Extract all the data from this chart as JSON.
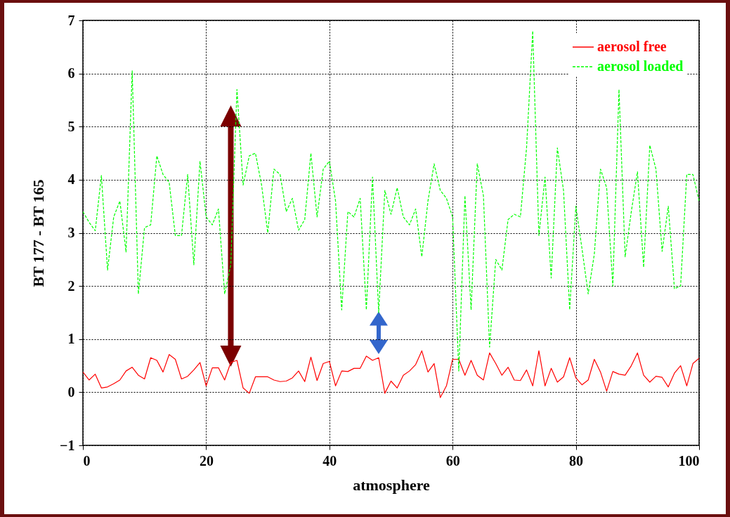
{
  "chart_data": {
    "type": "line",
    "xlabel": "atmosphere",
    "ylabel": "BT 177 - BT 165",
    "x": [
      0,
      1,
      2,
      3,
      4,
      5,
      6,
      7,
      8,
      9,
      10,
      11,
      12,
      13,
      14,
      15,
      16,
      17,
      18,
      19,
      20,
      21,
      22,
      23,
      24,
      25,
      26,
      27,
      28,
      29,
      30,
      31,
      32,
      33,
      34,
      35,
      36,
      37,
      38,
      39,
      40,
      41,
      42,
      43,
      44,
      45,
      46,
      47,
      48,
      49,
      50,
      51,
      52,
      53,
      54,
      55,
      56,
      57,
      58,
      59,
      60,
      61,
      62,
      63,
      64,
      65,
      66,
      67,
      68,
      69,
      70,
      71,
      72,
      73,
      74,
      75,
      76,
      77,
      78,
      79,
      80,
      81,
      82,
      83,
      84,
      85,
      86,
      87,
      88,
      89,
      90,
      91,
      92,
      93,
      94,
      95,
      96,
      97,
      98,
      99,
      100
    ],
    "series": [
      {
        "name": "aerosol free",
        "color": "#ff0000",
        "line_style": "solid",
        "values": [
          0.38,
          0.23,
          0.34,
          0.08,
          0.1,
          0.16,
          0.23,
          0.4,
          0.47,
          0.32,
          0.25,
          0.65,
          0.6,
          0.38,
          0.71,
          0.62,
          0.25,
          0.3,
          0.42,
          0.56,
          0.12,
          0.46,
          0.46,
          0.23,
          0.56,
          0.6,
          0.08,
          -0.02,
          0.29,
          0.29,
          0.29,
          0.23,
          0.2,
          0.21,
          0.27,
          0.4,
          0.2,
          0.66,
          0.22,
          0.54,
          0.58,
          0.12,
          0.4,
          0.39,
          0.45,
          0.45,
          0.68,
          0.6,
          0.65,
          -0.02,
          0.21,
          0.08,
          0.32,
          0.4,
          0.52,
          0.78,
          0.38,
          0.54,
          -0.1,
          0.12,
          0.62,
          0.62,
          0.32,
          0.6,
          0.32,
          0.23,
          0.74,
          0.54,
          0.32,
          0.47,
          0.23,
          0.22,
          0.42,
          0.12,
          0.78,
          0.12,
          0.45,
          0.19,
          0.29,
          0.65,
          0.27,
          0.14,
          0.23,
          0.62,
          0.38,
          0.02,
          0.39,
          0.34,
          0.32,
          0.5,
          0.74,
          0.32,
          0.19,
          0.3,
          0.28,
          0.1,
          0.36,
          0.5,
          0.12,
          0.54,
          0.64
        ]
      },
      {
        "name": "aerosol loaded",
        "color": "#00ff00",
        "line_style": "dashed",
        "values": [
          3.4,
          3.2,
          3.04,
          4.08,
          2.3,
          3.3,
          3.6,
          2.64,
          6.05,
          1.85,
          3.1,
          3.15,
          4.45,
          4.1,
          3.95,
          2.95,
          2.95,
          4.1,
          2.4,
          4.35,
          3.3,
          3.15,
          3.45,
          1.85,
          2.4,
          5.7,
          3.9,
          4.45,
          4.5,
          3.9,
          3.0,
          4.2,
          4.1,
          3.4,
          3.65,
          3.05,
          3.25,
          4.5,
          3.3,
          4.2,
          4.35,
          3.6,
          1.55,
          3.4,
          3.3,
          3.65,
          1.55,
          4.05,
          1.5,
          3.8,
          3.35,
          3.85,
          3.3,
          3.15,
          3.45,
          2.55,
          3.6,
          4.3,
          3.8,
          3.65,
          3.3,
          0.4,
          3.7,
          1.55,
          4.3,
          3.7,
          0.85,
          2.5,
          2.3,
          3.25,
          3.35,
          3.3,
          4.6,
          6.8,
          2.95,
          4.05,
          2.15,
          4.6,
          3.8,
          1.55,
          3.5,
          2.7,
          1.85,
          2.6,
          4.2,
          3.85,
          2.0,
          5.7,
          2.55,
          3.4,
          4.15,
          2.35,
          4.65,
          4.2,
          2.65,
          3.5,
          1.95,
          2.0,
          4.1,
          4.1,
          3.6
        ]
      }
    ],
    "xlim": [
      0,
      100
    ],
    "xticks": [
      0,
      20,
      40,
      60,
      80,
      100
    ],
    "ylim": [
      -1,
      7
    ],
    "yticks": [
      -1,
      0,
      1,
      2,
      3,
      4,
      5,
      6,
      7
    ],
    "grid": true,
    "legend": "top right"
  }
}
